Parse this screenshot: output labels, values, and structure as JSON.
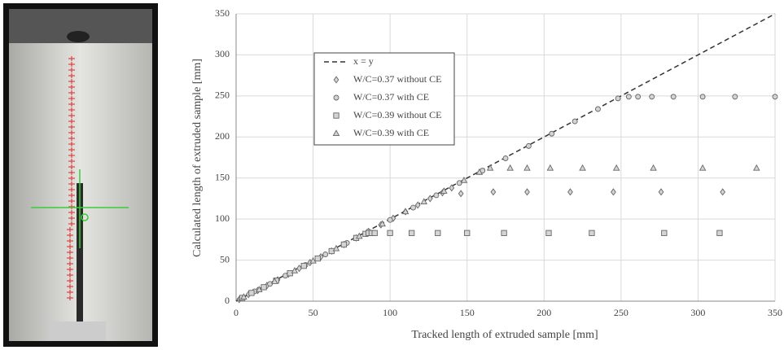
{
  "chart_data": {
    "type": "scatter",
    "x_label": "Tracked length of extruded sample [mm]",
    "y_label": "Calculated length of extruded sample [mm]",
    "xlim": [
      0,
      350
    ],
    "ylim": [
      0,
      350
    ],
    "xticks": [
      0,
      50,
      100,
      150,
      200,
      250,
      300,
      350
    ],
    "yticks": [
      0,
      50,
      100,
      150,
      200,
      250,
      300,
      350
    ],
    "grid": true,
    "legend": "upper left",
    "series": [
      {
        "name": "x = y",
        "color": "#333333",
        "marker": "dashed-line",
        "x": [
          0,
          350
        ],
        "values": [
          0,
          350
        ]
      },
      {
        "name": "W/C=0.37 without CE",
        "color": "#d4d4d4",
        "marker": "diamond",
        "x": [
          2,
          8,
          14,
          20,
          27,
          34,
          41,
          48,
          55,
          62,
          70,
          78,
          86,
          94,
          102,
          110,
          118,
          126,
          134,
          140,
          146,
          167,
          189,
          217,
          245,
          276,
          316
        ],
        "values": [
          2,
          8,
          13,
          19,
          26,
          33,
          40,
          47,
          54,
          61,
          69,
          77,
          85,
          93,
          101,
          109,
          117,
          125,
          132,
          138,
          131,
          133,
          133,
          133,
          133,
          133,
          133
        ]
      },
      {
        "name": "W/C=0.37 with CE",
        "color": "#d4d4d4",
        "marker": "circle",
        "x": [
          3,
          12,
          22,
          32,
          45,
          58,
          72,
          86,
          100,
          115,
          130,
          145,
          160,
          175,
          190,
          205,
          220,
          235,
          248,
          255,
          261,
          270,
          284,
          303,
          324,
          350
        ],
        "values": [
          3,
          12,
          21,
          31,
          44,
          57,
          71,
          85,
          99,
          114,
          129,
          144,
          159,
          174,
          189,
          204,
          219,
          234,
          247,
          249,
          249,
          249,
          249,
          249,
          249,
          249
        ]
      },
      {
        "name": "W/C=0.39 without CE",
        "color": "#d4d4d4",
        "marker": "square",
        "x": [
          4,
          10,
          18,
          26,
          35,
          44,
          53,
          62,
          70,
          78,
          84,
          86,
          88,
          90,
          100,
          114,
          131,
          150,
          174,
          203,
          231,
          278,
          314
        ],
        "values": [
          4,
          10,
          17,
          25,
          34,
          43,
          52,
          61,
          69,
          77,
          82,
          83,
          83,
          83,
          83,
          83,
          83,
          83,
          83,
          83,
          83,
          83,
          83
        ]
      },
      {
        "name": "W/C=0.39 with CE",
        "color": "#d4d4d4",
        "marker": "triangle",
        "x": [
          5,
          15,
          25,
          38,
          50,
          65,
          80,
          95,
          110,
          122,
          135,
          148,
          158,
          165,
          178,
          189,
          204,
          225,
          247,
          271,
          303,
          338
        ],
        "values": [
          5,
          14,
          24,
          37,
          49,
          64,
          79,
          94,
          109,
          121,
          134,
          147,
          157,
          162,
          162,
          162,
          162,
          162,
          162,
          162,
          162,
          162
        ]
      }
    ]
  }
}
